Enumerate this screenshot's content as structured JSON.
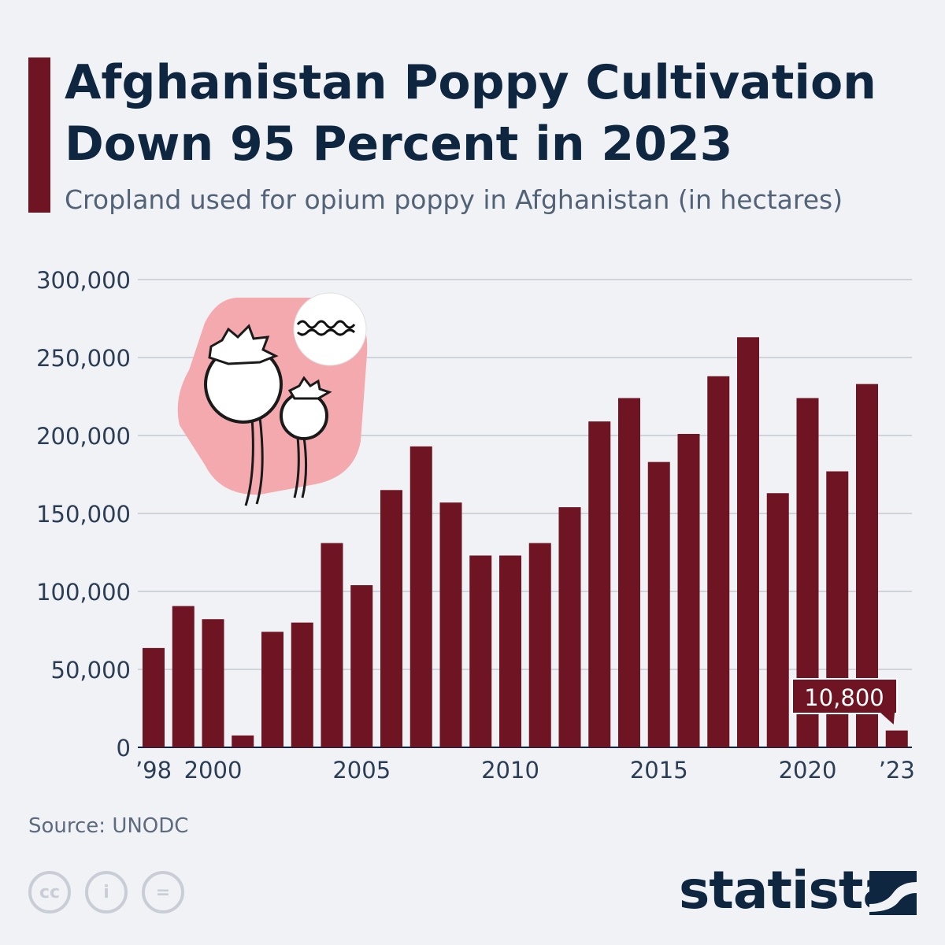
{
  "title": "Afghanistan Poppy Cultivation Down 95 Percent in 2023",
  "subtitle": "Cropland used for opium poppy in Afghanistan (in hectares)",
  "source": "Source: UNODC",
  "brand": "statista",
  "colors": {
    "bar": "#6e1423",
    "title": "#0f2640",
    "accent": "#6e1423",
    "illustration_bg": "#f4a9ae"
  },
  "icons": [
    "poppy-illustration",
    "taliban-flag-badge",
    "cc-icon",
    "attribution-icon",
    "no-derivatives-icon",
    "statista-logo-icon"
  ],
  "chart_data": {
    "type": "bar",
    "title": "Afghanistan Poppy Cultivation Down 95 Percent in 2023",
    "ylabel": "",
    "xlabel": "",
    "ylim": [
      0,
      300000
    ],
    "grid": true,
    "categories": [
      1998,
      1999,
      2000,
      2001,
      2002,
      2003,
      2004,
      2005,
      2006,
      2007,
      2008,
      2009,
      2010,
      2011,
      2012,
      2013,
      2014,
      2015,
      2016,
      2017,
      2018,
      2019,
      2020,
      2021,
      2022,
      2023
    ],
    "values": [
      63700,
      90600,
      82200,
      7600,
      74100,
      80000,
      131000,
      104000,
      165000,
      193000,
      157000,
      123000,
      123000,
      131000,
      154000,
      209000,
      224000,
      183000,
      201000,
      238000,
      263000,
      163000,
      224000,
      177000,
      233000,
      10800
    ],
    "y_ticks": [
      "0",
      "50,000",
      "100,000",
      "150,000",
      "200,000",
      "250,000",
      "300,000"
    ],
    "x_tick_labels": [
      {
        "year": 1998,
        "label": "’98"
      },
      {
        "year": 2000,
        "label": "2000"
      },
      {
        "year": 2005,
        "label": "2005"
      },
      {
        "year": 2010,
        "label": "2010"
      },
      {
        "year": 2015,
        "label": "2015"
      },
      {
        "year": 2020,
        "label": "2020"
      },
      {
        "year": 2023,
        "label": "’23"
      }
    ],
    "annotation": {
      "year": 2023,
      "label": "10,800"
    }
  }
}
